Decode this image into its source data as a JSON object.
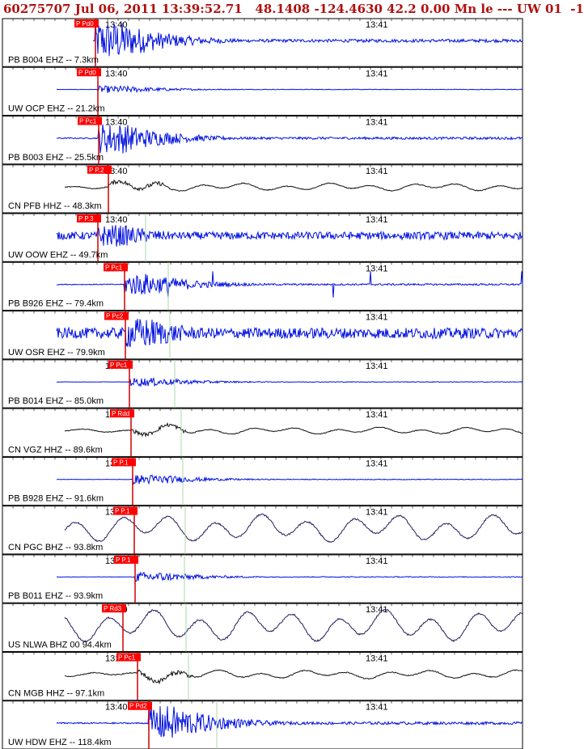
{
  "header": {
    "text": "60275707 Jul 06, 2011 13:39:52.71   48.1408 -124.4630 42.2 0.00 Mn le --- UW 01  -1"
  },
  "time_marks": [
    "13:40",
    "13:41"
  ],
  "colors": {
    "header_text": "#b01010",
    "waveform_blue": "#0010e0",
    "waveform_black": "#101010",
    "waveform_purple": "#2a1a5e",
    "pick_box": "#ff0000",
    "pick_line": "#cc0000",
    "s_line": "#a8d8a8"
  },
  "traces": [
    {
      "label": "PB B004 EHZ -- 7.3km",
      "pick": "P Pd0",
      "color": "blue",
      "style": "burst",
      "amp": 0.9
    },
    {
      "label": "UW OCP EHZ -- 21.2km",
      "pick": "P Pd0",
      "color": "blue",
      "style": "small",
      "amp": 0.3
    },
    {
      "label": "PB B003 EHZ -- 25.5km",
      "pick": "P Pc1",
      "color": "blue",
      "style": "burst",
      "amp": 0.7
    },
    {
      "label": "CN PFB HHZ -- 48.3km",
      "pick": "P P.2",
      "color": "black",
      "style": "wave",
      "amp": 0.5
    },
    {
      "label": "UW OOW EHZ -- 49.7km",
      "pick": "P P.3",
      "color": "blue",
      "style": "noisy",
      "amp": 0.5
    },
    {
      "label": "PB B926 EHZ -- 79.4km",
      "pick": "P Pc1",
      "color": "blue",
      "style": "spiky",
      "amp": 0.5
    },
    {
      "label": "UW OSR EHZ -- 79.9km",
      "pick": "P Pc2",
      "color": "blue",
      "style": "noisy",
      "amp": 0.7
    },
    {
      "label": "PB B014 EHZ -- 85.0km",
      "pick": "P Pc1",
      "color": "blue",
      "style": "small",
      "amp": 0.35
    },
    {
      "label": "CN VGZ HHZ -- 89.6km",
      "pick": "P Rdd",
      "color": "black",
      "style": "wave",
      "amp": 0.45
    },
    {
      "label": "PB B928 EHZ -- 91.6km",
      "pick": "P P.1",
      "color": "blue",
      "style": "small",
      "amp": 0.4
    },
    {
      "label": "CN PGC BHZ -- 93.8km",
      "pick": "P P.1",
      "color": "purple",
      "style": "bigwave",
      "amp": 0.7
    },
    {
      "label": "PB B011 EHZ -- 93.9km",
      "pick": "P P.1",
      "color": "blue",
      "style": "small",
      "amp": 0.4
    },
    {
      "label": "US NLWA BHZ 00 94.4km",
      "pick": "P Rd3",
      "color": "purple",
      "style": "bigwave",
      "amp": 0.8
    },
    {
      "label": "CN MGB HHZ -- 97.1km",
      "pick": "P Pc1",
      "color": "black",
      "style": "wave",
      "amp": 0.55
    },
    {
      "label": "UW HDW EHZ -- 118.4km",
      "pick": "P Pd2",
      "color": "blue",
      "style": "burst",
      "amp": 0.8
    }
  ]
}
